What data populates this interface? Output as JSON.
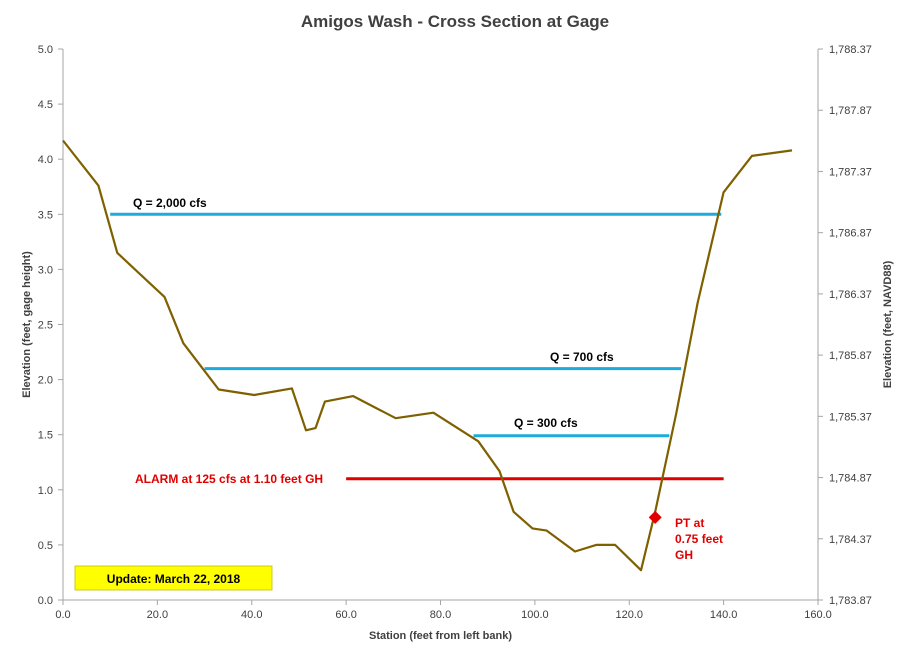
{
  "chart_data": {
    "type": "line",
    "title": "Amigos Wash - Cross Section at Gage",
    "xlabel": "Station (feet from left bank)",
    "ylabel": "Elevation (feet, gage height)",
    "y2label": "Elevation (feet, NAVD88)",
    "xlim": [
      0,
      160
    ],
    "ylim": [
      0,
      5
    ],
    "y2lim": [
      1783.87,
      1788.37
    ],
    "x_ticks": [
      "0.0",
      "20.0",
      "40.0",
      "60.0",
      "80.0",
      "100.0",
      "120.0",
      "140.0",
      "160.0"
    ],
    "y_ticks": [
      "0.0",
      "0.5",
      "1.0",
      "1.5",
      "2.0",
      "2.5",
      "3.0",
      "3.5",
      "4.0",
      "4.5",
      "5.0"
    ],
    "y2_ticks": [
      "1,783.87",
      "1,784.37",
      "1,784.87",
      "1,785.37",
      "1,785.87",
      "1,786.37",
      "1,786.87",
      "1,787.37",
      "1,787.87",
      "1,788.37"
    ],
    "grid": false,
    "colors": {
      "profile": "#7f6000",
      "discharge": "#1eaadc",
      "alarm": "#e00000",
      "pt": "#e00000",
      "update_box": "#ffff00"
    },
    "series": [
      {
        "x": [
          0,
          7.5,
          11.5,
          21.5,
          25.5,
          33,
          40.5,
          48.5,
          51.5,
          53.5,
          55.5,
          61.5,
          70.5,
          78.5,
          88,
          92.5,
          95.5,
          99.5,
          102.5,
          108.5,
          113,
          117,
          122.5,
          125.5,
          130,
          134.5,
          140,
          146,
          154.5
        ],
        "y": [
          4.17,
          3.76,
          3.15,
          2.75,
          2.33,
          1.91,
          1.86,
          1.92,
          1.54,
          1.56,
          1.8,
          1.85,
          1.65,
          1.7,
          1.44,
          1.17,
          0.8,
          0.65,
          0.63,
          0.44,
          0.5,
          0.5,
          0.27,
          0.8,
          1.7,
          2.7,
          3.7,
          4.03,
          4.08
        ]
      }
    ],
    "discharge_lines": [
      {
        "label": "Q = 2,000 cfs",
        "x_start": 10,
        "x_end": 139.5,
        "y": 3.5
      },
      {
        "label": "Q = 700 cfs",
        "x_start": 30,
        "x_end": 131,
        "y": 2.1
      },
      {
        "label": "Q = 300 cfs",
        "x_start": 87,
        "x_end": 128.5,
        "y": 1.49
      }
    ],
    "alarm": {
      "label": "ALARM at  125 cfs at 1.10 feet GH",
      "x_start": 60,
      "x_end": 140,
      "y": 1.1
    },
    "pt": {
      "x": 125.5,
      "y": 0.75,
      "label_lines": [
        "PT at",
        "0.75  feet",
        "GH"
      ]
    },
    "update": "Update: March 22, 2018"
  }
}
